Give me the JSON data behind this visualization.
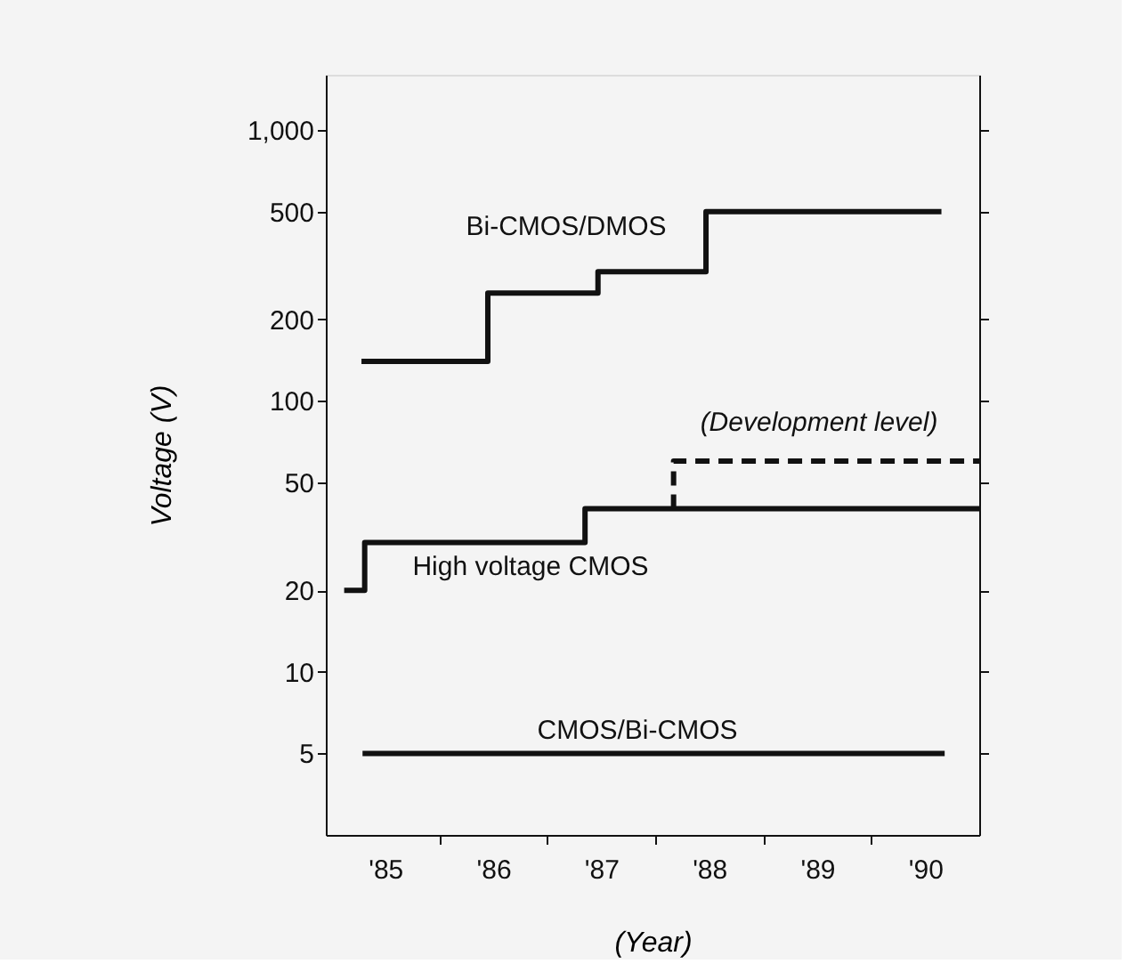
{
  "chart_data": {
    "type": "step",
    "xlabel": "(Year)",
    "ylabel": "Voltage (V)",
    "log": "y",
    "grid": false,
    "marker": "none",
    "xlim": [
      1984.45,
      1990.5
    ],
    "ylim": [
      2.5,
      1600
    ],
    "xticks": [
      {
        "value": 1985,
        "label": "'85"
      },
      {
        "value": 1985.5,
        "label": null
      },
      {
        "value": 1986,
        "label": "'86"
      },
      {
        "value": 1986.5,
        "label": null
      },
      {
        "value": 1987,
        "label": "'87"
      },
      {
        "value": 1987.5,
        "label": null
      },
      {
        "value": 1988,
        "label": "'88"
      },
      {
        "value": 1988.5,
        "label": null
      },
      {
        "value": 1989,
        "label": "'89"
      },
      {
        "value": 1989.5,
        "label": null
      },
      {
        "value": 1990,
        "label": "'90"
      }
    ],
    "yticks": [
      5,
      10,
      20,
      50,
      100,
      200,
      500,
      {
        "value": 1000,
        "label": "1,000"
      }
    ],
    "series": [
      {
        "name": "Bi-CMOS/DMOS",
        "color": "#111111",
        "line_style": "solid",
        "x": [
          1984.78,
          1985.95,
          1986.97,
          1987.97,
          1990.15
        ],
        "values": [
          140,
          250,
          300,
          500,
          500
        ]
      },
      {
        "name": "High voltage CMOS",
        "color": "#111111",
        "line_style": "solid",
        "x": [
          1984.62,
          1984.81,
          1986.85,
          1990.5
        ],
        "values": [
          20,
          30,
          40,
          40
        ]
      },
      {
        "name": "(Development level)",
        "color": "#111111",
        "line_style": "dashed",
        "x": [
          1987.67,
          1987.67,
          1990.5
        ],
        "values": [
          40,
          60,
          60
        ]
      },
      {
        "name": "CMOS/Bi-CMOS",
        "color": "#111111",
        "line_style": "solid",
        "x": [
          1984.79,
          1990.18
        ],
        "values": [
          5,
          5
        ]
      }
    ]
  }
}
